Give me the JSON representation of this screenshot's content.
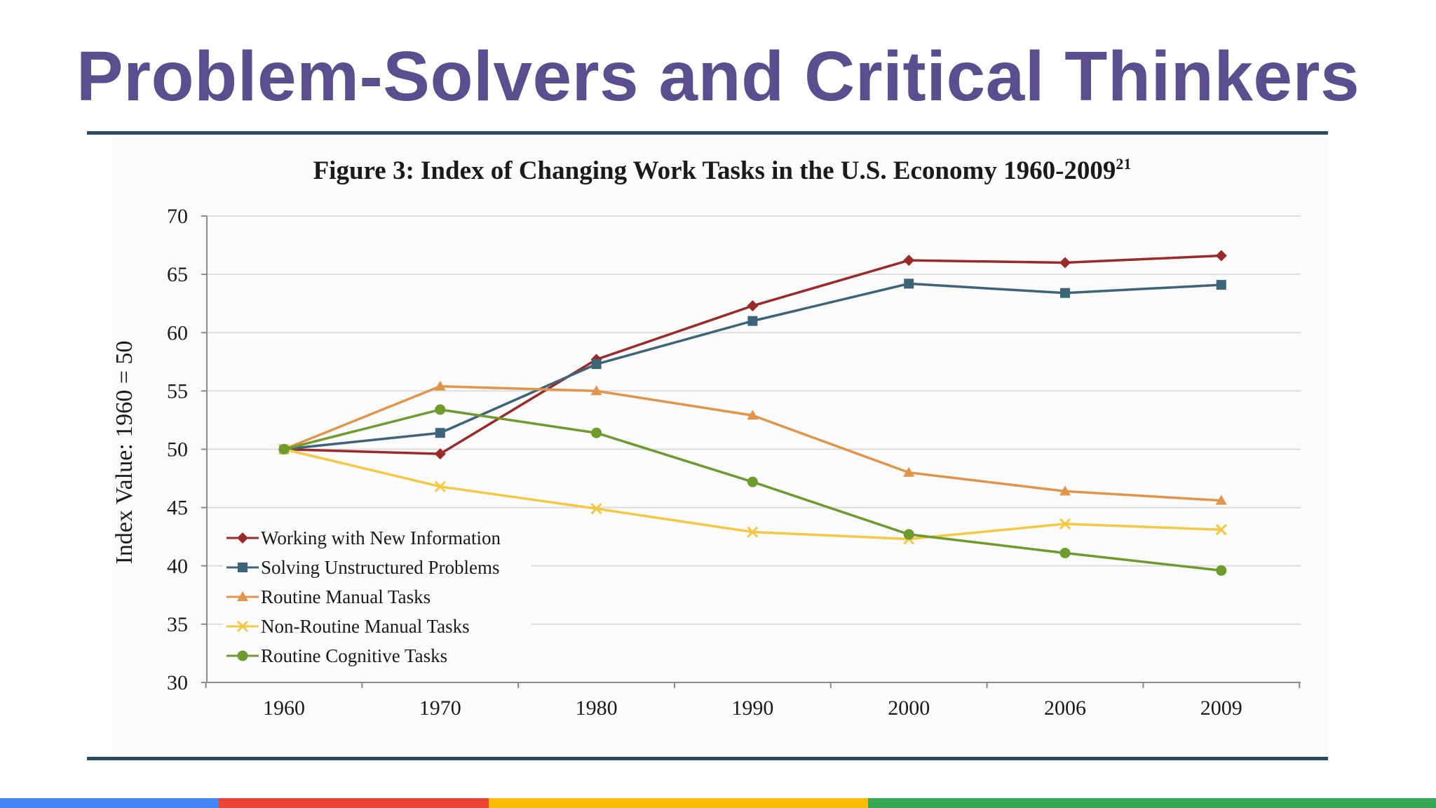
{
  "slide": {
    "title": "Problem-Solvers and Critical Thinkers"
  },
  "chart_data": {
    "type": "line",
    "title": "Figure 3: Index of Changing Work Tasks in the U.S. Economy 1960-2009",
    "title_superscript": "21",
    "xlabel": "",
    "ylabel": "Index Value: 1960 = 50",
    "categories": [
      "1960",
      "1970",
      "1980",
      "1990",
      "2000",
      "2006",
      "2009"
    ],
    "ylim": [
      30,
      70
    ],
    "yticks": [
      30,
      35,
      40,
      45,
      50,
      55,
      60,
      65,
      70
    ],
    "grid": true,
    "legend_position": "bottom-left",
    "series": [
      {
        "name": "Working with New Information",
        "color": "#9b2a2a",
        "marker": "diamond",
        "values": [
          50,
          49.6,
          57.7,
          62.3,
          66.2,
          66.0,
          66.6
        ]
      },
      {
        "name": "Solving Unstructured Problems",
        "color": "#3d6478",
        "marker": "square",
        "values": [
          50,
          51.4,
          57.3,
          61.0,
          64.2,
          63.4,
          64.1
        ]
      },
      {
        "name": "Routine Manual Tasks",
        "color": "#e0954a",
        "marker": "triangle",
        "values": [
          50,
          55.4,
          55.0,
          52.9,
          48.0,
          46.4,
          45.6
        ]
      },
      {
        "name": "Non-Routine Manual Tasks",
        "color": "#f4c842",
        "marker": "x",
        "values": [
          50,
          46.8,
          44.9,
          42.9,
          42.3,
          43.6,
          43.1
        ]
      },
      {
        "name": "Routine Cognitive Tasks",
        "color": "#6e9a2e",
        "marker": "circle",
        "values": [
          50,
          53.4,
          51.4,
          47.2,
          42.7,
          41.1,
          39.6
        ]
      }
    ]
  },
  "footer": {
    "stripe_colors": [
      "#4285f4",
      "#ea4335",
      "#fbbc05",
      "#34a853"
    ]
  }
}
